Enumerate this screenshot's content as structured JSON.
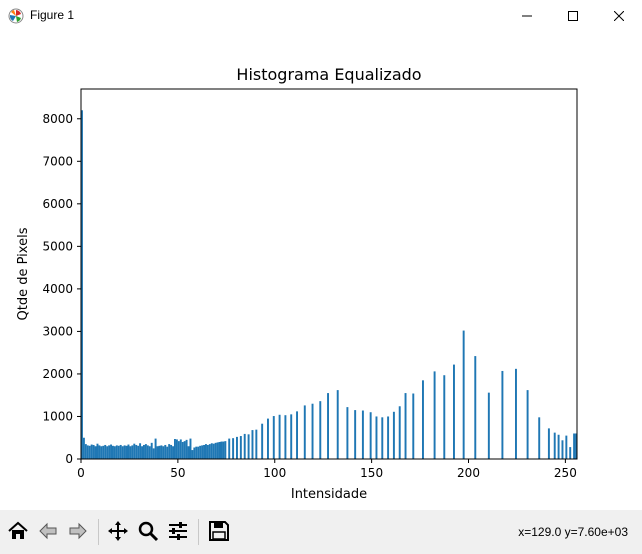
{
  "window": {
    "title": "Figure 1",
    "minimize_icon": "minimize-icon",
    "maximize_icon": "maximize-icon",
    "close_icon": "close-icon"
  },
  "toolbar": {
    "buttons": [
      "home-icon",
      "back-arrow-icon",
      "forward-arrow-icon",
      "move-arrows-icon",
      "zoom-magnifier-icon",
      "subplots-sliders-icon",
      "save-floppy-icon"
    ],
    "coordinates": "x=129.0 y=7.60e+03"
  },
  "colors": {
    "bar": "#1f77b4",
    "toolbar_bg": "#f0f0f0"
  },
  "chart_data": {
    "type": "bar",
    "title": "Histograma Equalizado",
    "xlabel": "Intensidade",
    "ylabel": "Qtde de Pixels",
    "xlim": [
      0,
      256
    ],
    "ylim": [
      0,
      8700
    ],
    "xticks": [
      0,
      50,
      100,
      150,
      200,
      250
    ],
    "yticks": [
      0,
      1000,
      2000,
      3000,
      4000,
      5000,
      6000,
      7000,
      8000
    ],
    "grid": false,
    "bar_width": 1,
    "series": [
      {
        "x": [
          0,
          1,
          2,
          3,
          4,
          5,
          6,
          7,
          8,
          9,
          10,
          11,
          12,
          13,
          14,
          15,
          16,
          17,
          18,
          19,
          20,
          21,
          22,
          23,
          24,
          25,
          26,
          27,
          28,
          29,
          30,
          31,
          32,
          33,
          34,
          35,
          36,
          37,
          38,
          39,
          40,
          41,
          42,
          43,
          44,
          45,
          46,
          47,
          48,
          49,
          50,
          51,
          52,
          53,
          54,
          55,
          56,
          57,
          58,
          59,
          60,
          61,
          62,
          63,
          64,
          65,
          66,
          67,
          68,
          69,
          70,
          71,
          72,
          73,
          74,
          76,
          78,
          80,
          82,
          84,
          86,
          88,
          90,
          93,
          96,
          99,
          102,
          105,
          108,
          111,
          115,
          119,
          123,
          127,
          132,
          137,
          141,
          145,
          149,
          152,
          155,
          158,
          161,
          164,
          167,
          171,
          176,
          182,
          187,
          192,
          197,
          203,
          210,
          217,
          224,
          230,
          236,
          241,
          244,
          246,
          248,
          250,
          252,
          254,
          255
        ],
        "y": [
          8200,
          500,
          350,
          320,
          310,
          340,
          330,
          300,
          360,
          320,
          300,
          310,
          330,
          300,
          320,
          340,
          310,
          300,
          320,
          310,
          330,
          300,
          320,
          310,
          340,
          300,
          320,
          360,
          330,
          310,
          370,
          300,
          330,
          350,
          320,
          300,
          380,
          250,
          480,
          300,
          310,
          320,
          300,
          330,
          290,
          350,
          330,
          300,
          470,
          460,
          420,
          460,
          400,
          420,
          450,
          300,
          480,
          210,
          270,
          290,
          290,
          310,
          320,
          330,
          350,
          330,
          350,
          370,
          360,
          380,
          390,
          400,
          410,
          410,
          420,
          480,
          490,
          520,
          540,
          590,
          580,
          680,
          690,
          830,
          950,
          1010,
          1040,
          1030,
          1050,
          1120,
          1260,
          1300,
          1360,
          1550,
          1620,
          1220,
          1150,
          1140,
          1100,
          1000,
          980,
          1000,
          1110,
          1240,
          1550,
          1540,
          1850,
          2060,
          1970,
          2220,
          3020,
          2420,
          1560,
          2070,
          2120,
          1620,
          980,
          720,
          620,
          570,
          440,
          550,
          280,
          600,
          600
        ]
      }
    ]
  }
}
